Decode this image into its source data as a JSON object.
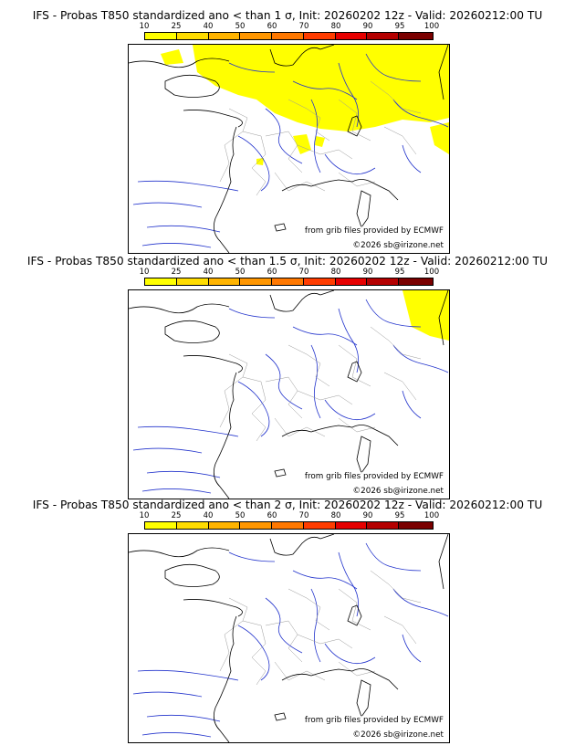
{
  "panels": [
    {
      "title": "IFS - Probas T850  standardized ano < than 1 σ, Init: 20260202 12z - Valid: 20260212:00 TU",
      "source_credit": "from grib files provided by ECMWF",
      "copyright": "©2026 sb@irizone.net",
      "probability_area": "large"
    },
    {
      "title": "IFS - Probas T850  standardized ano < than 1.5 σ, Init: 20260202 12z - Valid: 20260212:00 TU",
      "source_credit": "from grib files provided by ECMWF",
      "copyright": "©2026 sb@irizone.net",
      "probability_area": "small"
    },
    {
      "title": "IFS - Probas T850  standardized ano < than 2 σ, Init: 20260202 12z - Valid: 20260212:00 TU",
      "source_credit": "from grib files provided by ECMWF",
      "copyright": "©2026 sb@irizone.net",
      "probability_area": "none"
    }
  ],
  "colorbar": {
    "ticks": [
      "10",
      "25",
      "40",
      "50",
      "60",
      "70",
      "80",
      "90",
      "95",
      "100"
    ],
    "colors": [
      "#ffff00",
      "#ffdc00",
      "#ffb400",
      "#ff9600",
      "#ff7800",
      "#ff3c00",
      "#e60000",
      "#b40000",
      "#7a0000"
    ]
  },
  "map_colors": {
    "coast": "#000000",
    "rivers": "#2233cc",
    "borders": "#999999",
    "probability": "#ffff00"
  }
}
